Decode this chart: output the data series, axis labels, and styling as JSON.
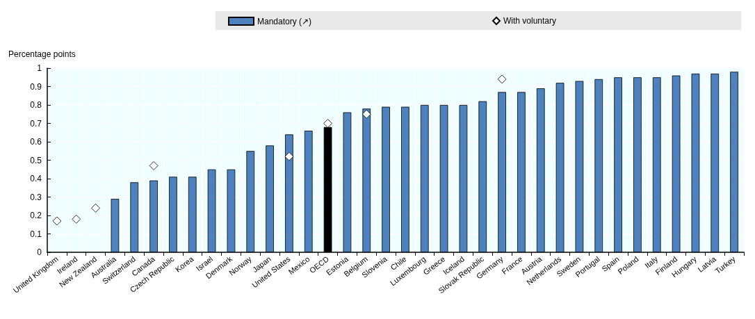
{
  "chart_data": {
    "type": "bar",
    "ylabel": "Percentage points",
    "categories": [
      "United Kingdom",
      "Ireland",
      "New Zealand",
      "Australia",
      "Switzerland",
      "Canada",
      "Czech Republic",
      "Korea",
      "Israel",
      "Denmark",
      "Norway",
      "Japan",
      "United States",
      "Mexico",
      "OECD",
      "Estonia",
      "Belgium",
      "Slovenia",
      "Chile",
      "Luxembourg",
      "Greece",
      "Iceland",
      "Slovak Republic",
      "Germany",
      "France",
      "Austria",
      "Netherlands",
      "Sweden",
      "Portugal",
      "Spain",
      "Poland",
      "Italy",
      "Finland",
      "Hungary",
      "Latvia",
      "Turkey"
    ],
    "series": [
      {
        "name": "Mandatory (↗)",
        "color": "#4f81bd",
        "colors": [
          "#4f81bd",
          "#4f81bd",
          "#4f81bd",
          "#4f81bd",
          "#4f81bd",
          "#4f81bd",
          "#4f81bd",
          "#4f81bd",
          "#4f81bd",
          "#4f81bd",
          "#4f81bd",
          "#4f81bd",
          "#4f81bd",
          "#4f81bd",
          "#000000",
          "#4f81bd",
          "#4f81bd",
          "#4f81bd",
          "#4f81bd",
          "#4f81bd",
          "#4f81bd",
          "#4f81bd",
          "#4f81bd",
          "#4f81bd",
          "#4f81bd",
          "#4f81bd",
          "#4f81bd",
          "#4f81bd",
          "#4f81bd",
          "#4f81bd",
          "#4f81bd",
          "#4f81bd",
          "#4f81bd",
          "#4f81bd",
          "#4f81bd",
          "#4f81bd"
        ],
        "values": [
          null,
          null,
          null,
          0.29,
          0.38,
          0.39,
          0.41,
          0.41,
          0.45,
          0.45,
          0.55,
          0.58,
          0.64,
          0.66,
          0.68,
          0.76,
          0.78,
          0.79,
          0.79,
          0.8,
          0.8,
          0.8,
          0.82,
          0.87,
          0.87,
          0.89,
          0.92,
          0.93,
          0.94,
          0.95,
          0.95,
          0.95,
          0.96,
          0.97,
          0.97,
          0.98
        ]
      },
      {
        "name": "With voluntary",
        "type": "scatter",
        "color": "#ffffff",
        "marker": "diamond",
        "x": [
          "United Kingdom",
          "Ireland",
          "New Zealand",
          "Canada",
          "United States",
          "OECD",
          "Belgium",
          "Germany"
        ],
        "values": [
          0.17,
          0.18,
          0.24,
          0.47,
          0.52,
          0.7,
          0.75,
          0.94
        ]
      }
    ],
    "ylim": [
      0,
      1
    ],
    "yticks": [
      0,
      0.1,
      0.2,
      0.3,
      0.4,
      0.5,
      0.6,
      0.7,
      0.8,
      0.9,
      1
    ],
    "grid": true,
    "legend": "top"
  }
}
